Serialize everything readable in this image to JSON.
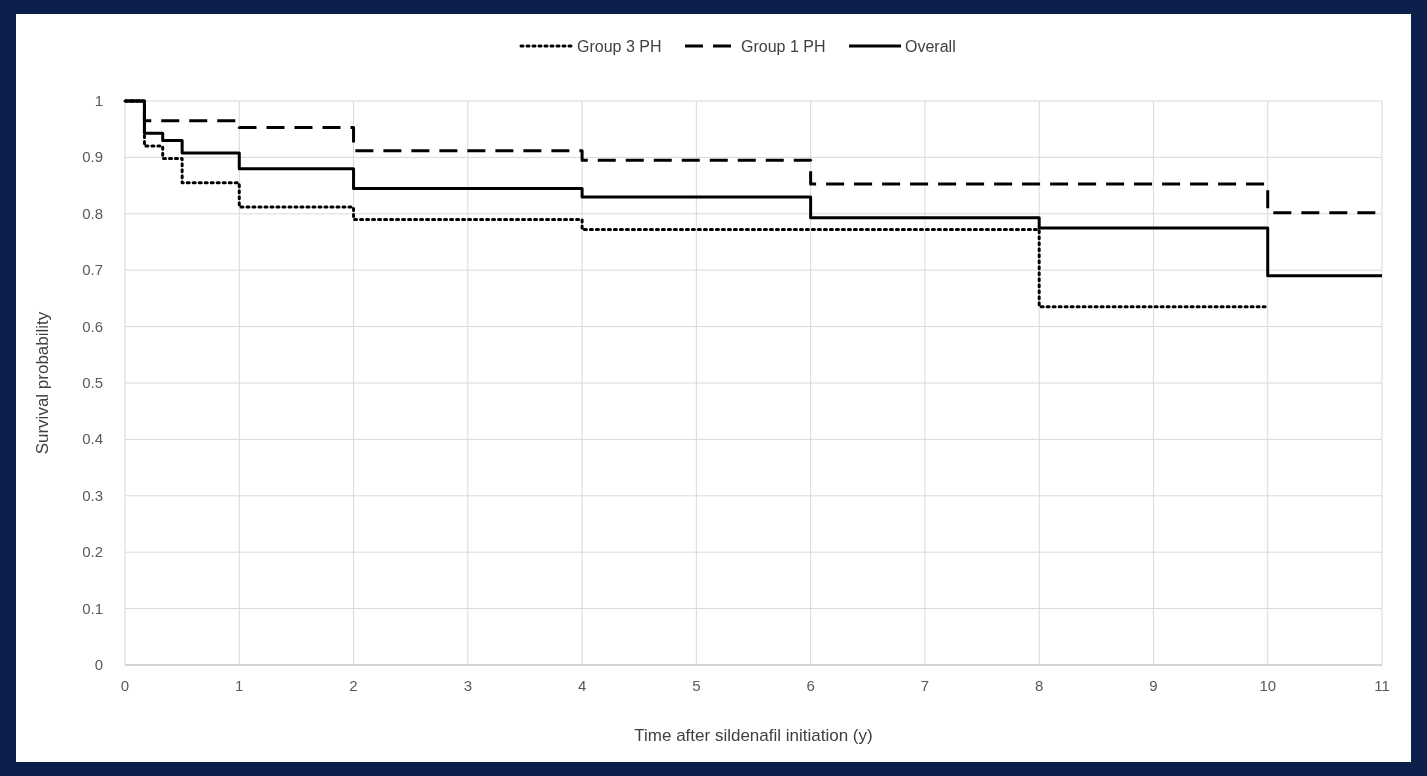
{
  "chart_data": {
    "type": "step",
    "xlabel": "Time after sildenafil initiation (y)",
    "ylabel": "Survival probability",
    "xlim": [
      0,
      11
    ],
    "xticks": [
      0,
      1,
      2,
      3,
      4,
      5,
      6,
      7,
      8,
      9,
      10,
      11
    ],
    "ylim": [
      0,
      1
    ],
    "yticks": [
      0,
      0.1,
      0.2,
      0.3,
      0.4,
      0.5,
      0.6,
      0.7,
      0.8,
      0.9,
      1
    ],
    "grid": true,
    "legend": "top",
    "marker": "none",
    "series": [
      {
        "name": "Group 3 PH",
        "color": "#000000",
        "line_style": "dotted",
        "x": [
          0,
          0.17,
          0.33,
          0.5,
          1,
          2,
          4,
          8,
          10
        ],
        "values": [
          1,
          0.92,
          0.898,
          0.855,
          0.812,
          0.79,
          0.772,
          0.635,
          0.635
        ]
      },
      {
        "name": "Group 1 PH",
        "color": "#000000",
        "line_style": "dashed",
        "x": [
          0,
          0.17,
          1,
          2,
          4,
          6,
          10,
          11
        ],
        "values": [
          1,
          0.965,
          0.953,
          0.912,
          0.895,
          0.853,
          0.802,
          0.802
        ]
      },
      {
        "name": "Overall",
        "color": "#000000",
        "line_style": "solid",
        "x": [
          0,
          0.17,
          0.33,
          0.5,
          1,
          2,
          4,
          6,
          8,
          10,
          11
        ],
        "values": [
          1,
          0.943,
          0.93,
          0.908,
          0.88,
          0.845,
          0.83,
          0.793,
          0.775,
          0.69,
          0.69
        ]
      }
    ]
  }
}
